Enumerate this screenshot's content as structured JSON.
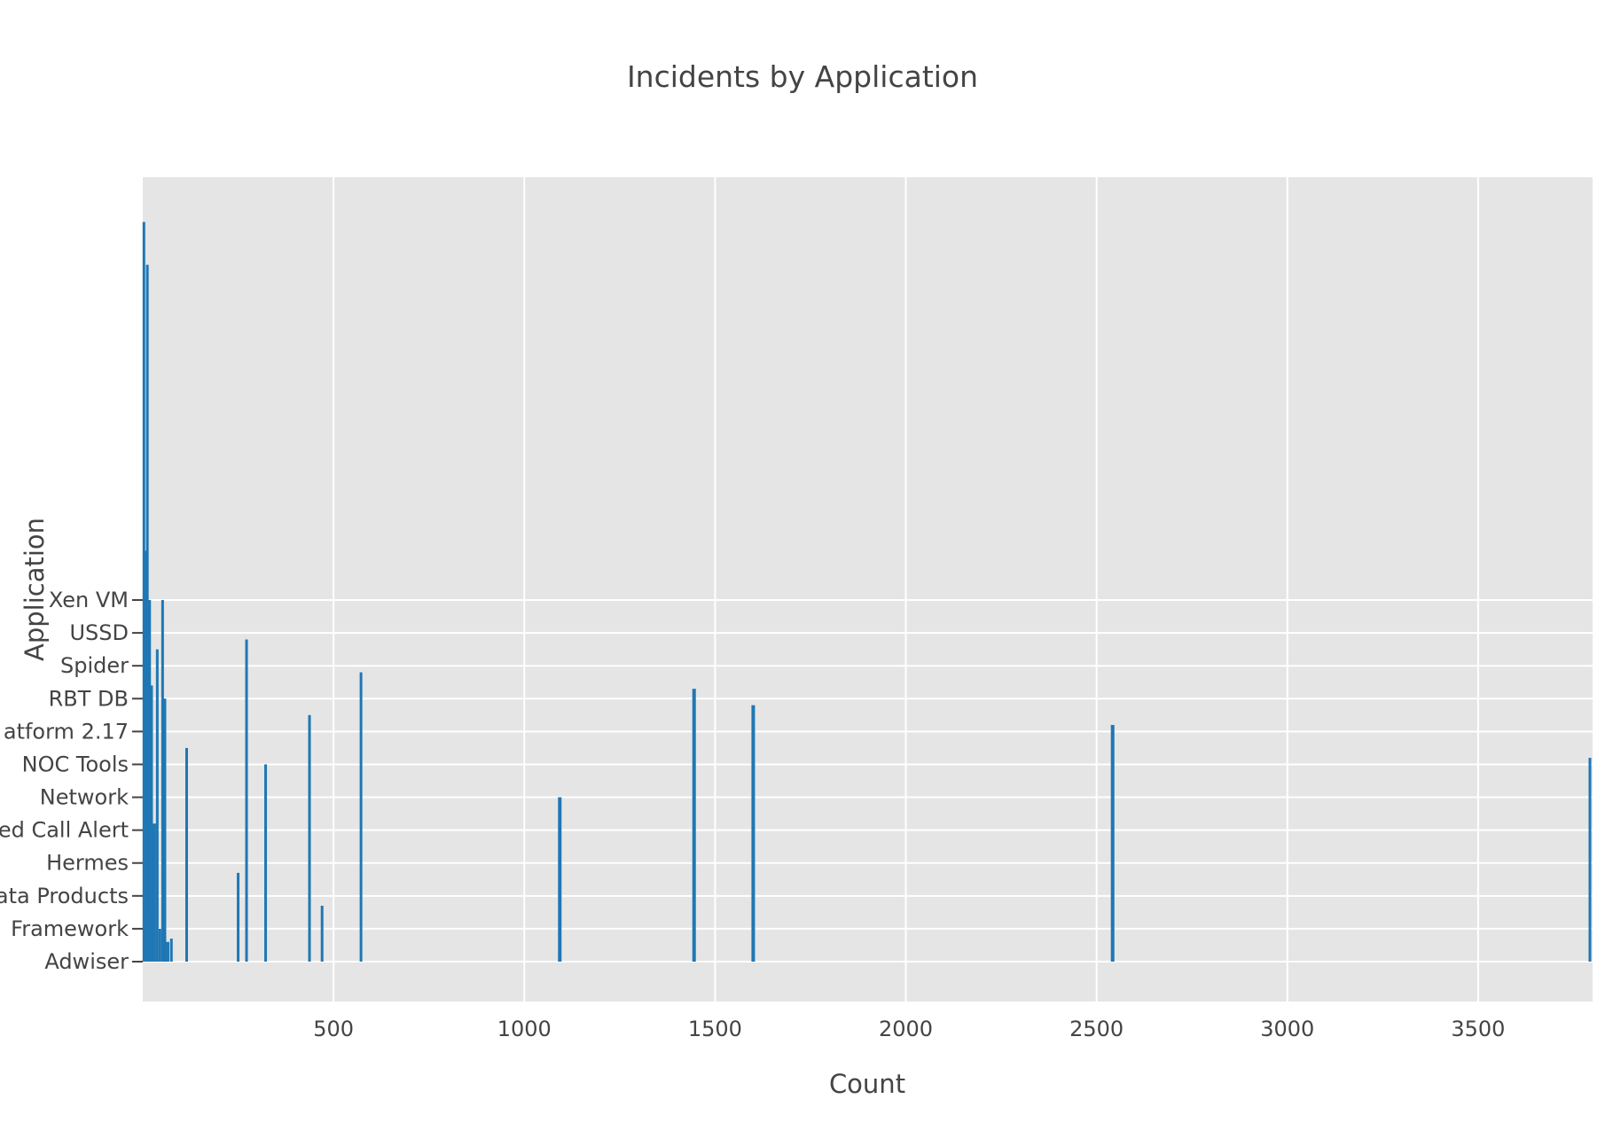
{
  "chart_data": {
    "type": "bar",
    "orientation": "horizontal",
    "title": "Incidents by Application",
    "xlabel": "Count",
    "ylabel": "Application",
    "xlim": [
      0,
      3800
    ],
    "x_ticks": [
      500,
      1000,
      1500,
      2000,
      2500,
      3000,
      3500
    ],
    "x_tick_labels": [
      "500",
      "1000",
      "1500",
      "2000",
      "2500",
      "3000",
      "3500"
    ],
    "y_tick_labels": [
      "Adwiser",
      "Framework",
      "ata Products",
      "Hermes",
      "ed Call Alert",
      "Network",
      "NOC Tools",
      "atform 2.17",
      "RBT DB",
      "Spider",
      "USSD",
      "Xen VM"
    ],
    "grid": true,
    "bar_color": "#1f77b4",
    "plot_background": "#e5e5e5",
    "grid_color": "#ffffff",
    "bars": [
      {
        "value": 3,
        "level": 22.5
      },
      {
        "value": 12,
        "level": 21.2
      },
      {
        "value": 8,
        "level": 12.5
      },
      {
        "value": 18,
        "level": 11.0
      },
      {
        "value": 25,
        "level": 3.2
      },
      {
        "value": 52,
        "level": 11.0
      },
      {
        "value": 58,
        "level": 8.0
      },
      {
        "value": 38,
        "level": 9.5
      },
      {
        "value": 45,
        "level": 1.0
      },
      {
        "value": 75,
        "level": 0.7
      },
      {
        "value": 115,
        "level": 6.5
      },
      {
        "value": 250,
        "level": 2.7
      },
      {
        "value": 272,
        "level": 9.8
      },
      {
        "value": 322,
        "level": 6.0
      },
      {
        "value": 437,
        "level": 7.5
      },
      {
        "value": 470,
        "level": 1.7
      },
      {
        "value": 572,
        "level": 8.8
      },
      {
        "value": 1093,
        "level": 5.0
      },
      {
        "value": 1445,
        "level": 8.3
      },
      {
        "value": 1600,
        "level": 7.8
      },
      {
        "value": 2542,
        "level": 7.2
      },
      {
        "value": 3800,
        "level": 6.2
      }
    ]
  }
}
